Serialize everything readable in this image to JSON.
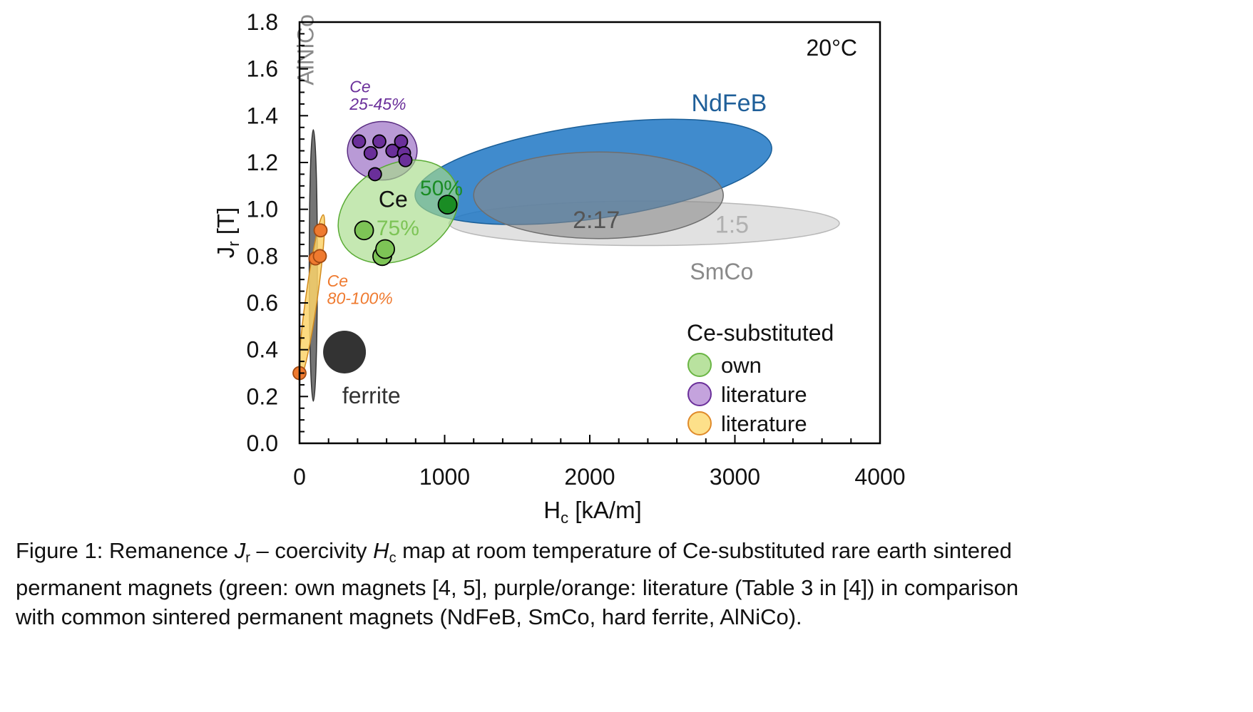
{
  "chart_data": {
    "type": "scatter",
    "xlabel": "H",
    "xlabel_sub": "c",
    "xlabel_unit": " [kA/m]",
    "ylabel": "J",
    "ylabel_sub": "r",
    "ylabel_unit": " [T]",
    "xlim": [
      0,
      4000
    ],
    "ylim": [
      0,
      1.8
    ],
    "xticks": [
      "0",
      "1000",
      "2000",
      "3000",
      "4000"
    ],
    "yticks": [
      "0.0",
      "0.2",
      "0.4",
      "0.6",
      "0.8",
      "1.0",
      "1.2",
      "1.4",
      "1.6",
      "1.8"
    ],
    "grid": false,
    "temperature_label": "20°C",
    "regions": [
      {
        "name": "SmCo 1:5",
        "label": "1:5",
        "cx": 2375,
        "cy": 0.94,
        "rx": 1345,
        "ry": 0.095,
        "angle": 0,
        "fill": "#dcdcdc",
        "stroke": "#b8b8b8",
        "opacity": 0.85,
        "label_x": 2980,
        "label_y": 0.9,
        "label_color": "#b0b0b0"
      },
      {
        "name": "NdFeB",
        "label": "NdFeB",
        "cx": 2025,
        "cy": 1.16,
        "rx": 1240,
        "ry": 0.2,
        "angle": -8,
        "fill": "#1f77c4",
        "stroke": "#1a5e97",
        "opacity": 0.85,
        "label_x": 2960,
        "label_y": 1.42,
        "label_color": "#1f5f99"
      },
      {
        "name": "SmCo 2:17",
        "label": "2:17",
        "cx": 2060,
        "cy": 1.06,
        "rx": 860,
        "ry": 0.185,
        "angle": 0,
        "fill": "#8a8a8a",
        "stroke": "#6e6e6e",
        "opacity": 0.6,
        "label_x": 2045,
        "label_y": 0.92,
        "label_color": "#555555"
      },
      {
        "name": "AlNiCo",
        "label": "AlNiCo",
        "cx": 95,
        "cy": 0.76,
        "rx": 28,
        "ry": 0.58,
        "angle": 0,
        "fill": "#6e6e6e",
        "stroke": "#333333",
        "opacity": 0.95
      },
      {
        "name": "Ce 80-100% literature",
        "cx": 85,
        "cy": 0.63,
        "rx": 40,
        "ry": 0.35,
        "angle": 8,
        "fill": "#fcd46b",
        "stroke": "#d18a1e",
        "opacity": 0.85
      },
      {
        "name": "Ce 25-45% literature",
        "cx": 570,
        "cy": 1.25,
        "rx": 240,
        "ry": 0.125,
        "angle": 0,
        "fill": "#9b6fc4",
        "stroke": "#5a2d82",
        "opacity": 0.7
      },
      {
        "name": "Ce own magnets",
        "cx": 680,
        "cy": 0.99,
        "rx": 440,
        "ry": 0.2,
        "angle": -30,
        "fill": "#a6dc88",
        "stroke": "#5aab35",
        "opacity": 0.65
      }
    ],
    "ferrite": {
      "label": "ferrite",
      "x": 310,
      "y": 0.39,
      "size": 30,
      "fill": "#333333",
      "label_x": 495,
      "label_y": 0.17
    },
    "series": [
      {
        "name": "Ce 25-45% (literature)",
        "color": "#6a2f9a",
        "stroke": "#000000",
        "size": 9,
        "points": [
          [
            410,
            1.29
          ],
          [
            490,
            1.24
          ],
          [
            550,
            1.29
          ],
          [
            520,
            1.15
          ],
          [
            640,
            1.25
          ],
          [
            700,
            1.29
          ],
          [
            720,
            1.24
          ],
          [
            730,
            1.21
          ]
        ]
      },
      {
        "name": "Ce 80-100% (literature)",
        "color": "#ef7a2f",
        "stroke": "#a24a12",
        "size": 9,
        "points": [
          [
            0,
            0.3
          ],
          [
            145,
            0.91
          ],
          [
            110,
            0.79
          ],
          [
            140,
            0.8
          ]
        ]
      },
      {
        "name": "Ce 75% (own)",
        "color": "#7dc456",
        "stroke": "#000000",
        "size": 13,
        "points": [
          [
            445,
            0.91
          ],
          [
            570,
            0.8
          ],
          [
            590,
            0.83
          ]
        ]
      },
      {
        "name": "Ce 50% (own)",
        "color": "#1a8c24",
        "stroke": "#000000",
        "size": 13,
        "points": [
          [
            1020,
            1.02
          ]
        ]
      }
    ],
    "annotations": [
      {
        "text": "AlNiCo",
        "x": 95,
        "y": 1.53,
        "color": "#8a8a8a",
        "size": 32,
        "rotate": -90
      },
      {
        "text": "Ce",
        "x": 345,
        "y": 1.5,
        "color": "#6a2f9a",
        "size": 23,
        "italic": true
      },
      {
        "text": "25-45%",
        "x": 345,
        "y": 1.425,
        "color": "#6a2f9a",
        "size": 23,
        "italic": true
      },
      {
        "text": "Ce",
        "x": 545,
        "y": 1.01,
        "color": "#111111",
        "size": 32
      },
      {
        "text": "50%",
        "x": 830,
        "y": 1.06,
        "color": "#1a8c24",
        "size": 30
      },
      {
        "text": "75%",
        "x": 530,
        "y": 0.89,
        "color": "#7dc456",
        "size": 30
      },
      {
        "text": "Ce",
        "x": 190,
        "y": 0.67,
        "color": "#ef7a2f",
        "size": 23,
        "italic": true
      },
      {
        "text": "80-100%",
        "x": 190,
        "y": 0.595,
        "color": "#ef7a2f",
        "size": 23,
        "italic": true
      },
      {
        "text": "SmCo",
        "x": 2690,
        "y": 0.7,
        "color": "#8a8a8a",
        "size": 32
      }
    ],
    "legend": {
      "title": "Ce-substituted",
      "position": "bottom-right",
      "items": [
        {
          "label": "own",
          "fill": "#b9e29f",
          "stroke": "#6ab544"
        },
        {
          "label": "literature",
          "fill": "#c4a3dd",
          "stroke": "#6a2f9a"
        },
        {
          "label": "literature",
          "fill": "#fde08a",
          "stroke": "#e08a2a"
        }
      ]
    }
  },
  "caption": {
    "line1_a": "Figure 1: Remanence ",
    "jr_main": "J",
    "jr_sub": "r",
    "line1_b": " – coercivity ",
    "hc_main": "H",
    "hc_sub": "c",
    "line1_c": " map at room temperature of Ce-substituted rare earth sintered",
    "line2": "permanent magnets (green: own magnets [4, 5], purple/orange: literature (Table 3 in [4]) in comparison",
    "line3": "with common sintered permanent magnets (NdFeB, SmCo, hard ferrite, AlNiCo)."
  }
}
